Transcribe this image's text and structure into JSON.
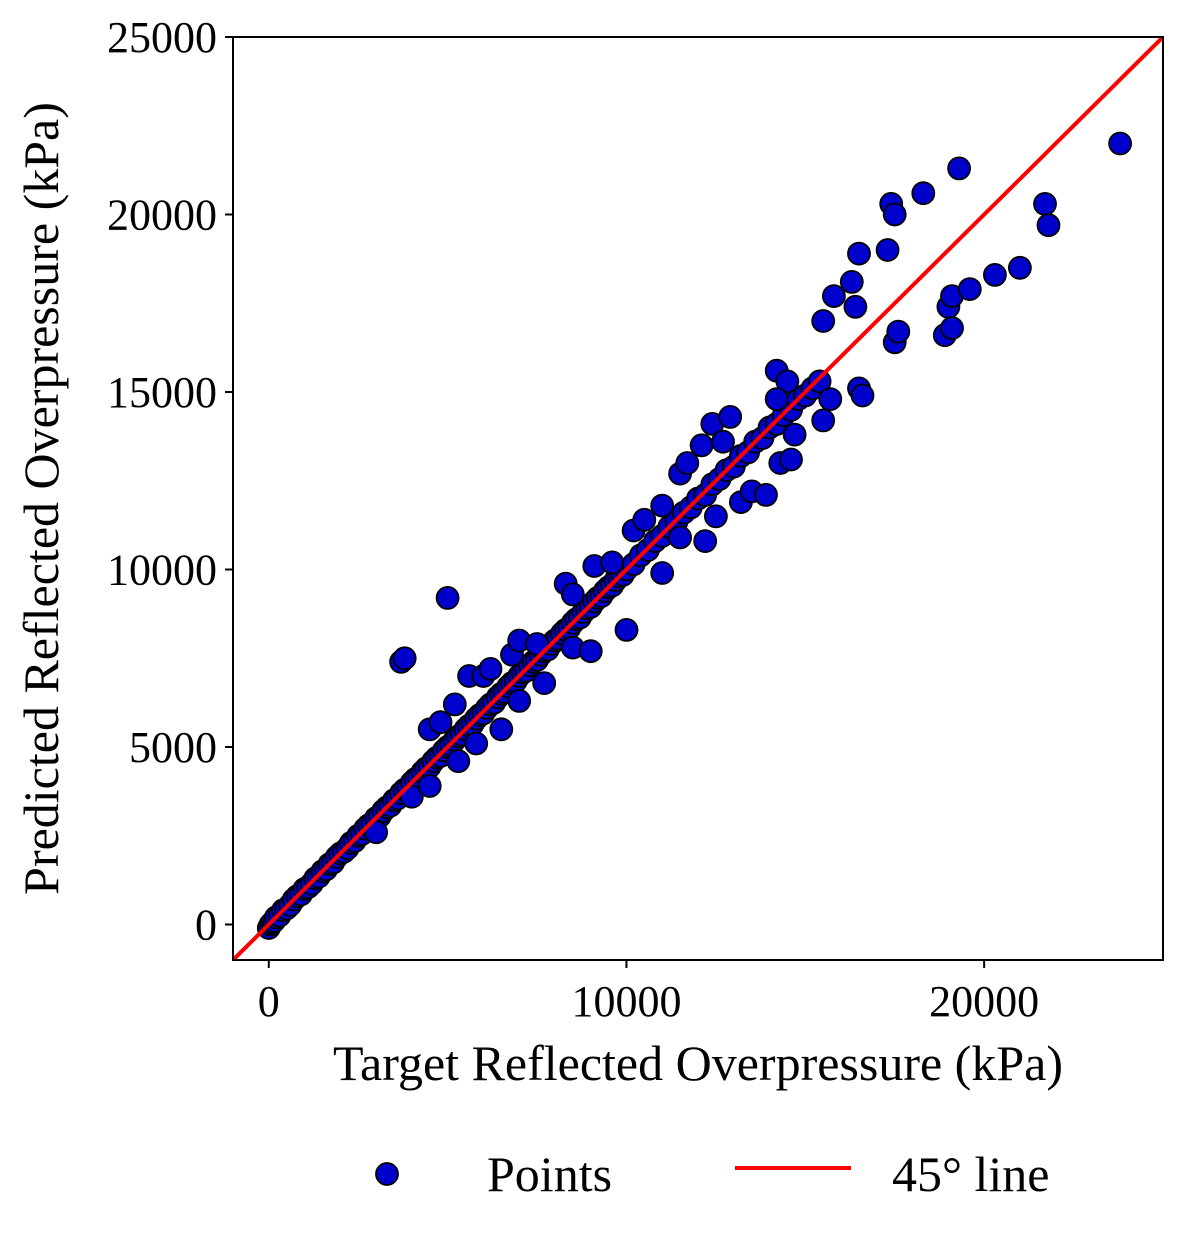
{
  "chart_data": {
    "type": "scatter",
    "xlabel": "Target Reflected Overpressure (kPa)",
    "ylabel": "Predicted Reflected Overpressure (kPa)",
    "xlim": [
      -1000,
      25000
    ],
    "ylim": [
      -1000,
      25000
    ],
    "xticks": [
      0,
      10000,
      20000
    ],
    "xtick_labels": [
      "0",
      "10000",
      "20000"
    ],
    "yticks": [
      0,
      5000,
      10000,
      15000,
      20000,
      25000
    ],
    "ytick_labels": [
      "0",
      "5000",
      "10000",
      "15000",
      "20000",
      "25000"
    ],
    "grid": false,
    "legend_placement": "bottom, below axes",
    "colors": {
      "points": "#0000cc",
      "point_edge": "#000000",
      "line": "#ff0000"
    },
    "series": [
      {
        "name": "Points",
        "kind": "scatter",
        "points": [
          [
            0,
            -100
          ],
          [
            50,
            0
          ],
          [
            100,
            50
          ],
          [
            150,
            100
          ],
          [
            200,
            200
          ],
          [
            300,
            250
          ],
          [
            400,
            400
          ],
          [
            500,
            450
          ],
          [
            600,
            550
          ],
          [
            700,
            700
          ],
          [
            800,
            800
          ],
          [
            900,
            850
          ],
          [
            1000,
            1000
          ],
          [
            1100,
            1050
          ],
          [
            1200,
            1150
          ],
          [
            1300,
            1300
          ],
          [
            1400,
            1350
          ],
          [
            1500,
            1500
          ],
          [
            1600,
            1550
          ],
          [
            1700,
            1700
          ],
          [
            1800,
            1750
          ],
          [
            1900,
            1900
          ],
          [
            2000,
            2000
          ],
          [
            2100,
            2050
          ],
          [
            2200,
            2150
          ],
          [
            2300,
            2300
          ],
          [
            2400,
            2350
          ],
          [
            2500,
            2500
          ],
          [
            2600,
            2550
          ],
          [
            2700,
            2700
          ],
          [
            2800,
            2800
          ],
          [
            2900,
            2850
          ],
          [
            3000,
            3000
          ],
          [
            3100,
            3050
          ],
          [
            3200,
            3200
          ],
          [
            3300,
            3300
          ],
          [
            3400,
            3350
          ],
          [
            3500,
            3500
          ],
          [
            3600,
            3550
          ],
          [
            3700,
            3700
          ],
          [
            3800,
            3800
          ],
          [
            3900,
            3850
          ],
          [
            4000,
            4000
          ],
          [
            4100,
            4100
          ],
          [
            4200,
            4150
          ],
          [
            4300,
            4300
          ],
          [
            4400,
            4400
          ],
          [
            4500,
            4450
          ],
          [
            4600,
            4600
          ],
          [
            4700,
            4700
          ],
          [
            4800,
            4750
          ],
          [
            4900,
            4900
          ],
          [
            5000,
            5000
          ],
          [
            5100,
            5050
          ],
          [
            5200,
            5200
          ],
          [
            5300,
            5300
          ],
          [
            5400,
            5350
          ],
          [
            5500,
            5500
          ],
          [
            5600,
            5600
          ],
          [
            5700,
            5650
          ],
          [
            5800,
            5800
          ],
          [
            5900,
            5900
          ],
          [
            6000,
            5950
          ],
          [
            6100,
            6100
          ],
          [
            6200,
            6200
          ],
          [
            6300,
            6250
          ],
          [
            6400,
            6400
          ],
          [
            6500,
            6500
          ],
          [
            6600,
            6550
          ],
          [
            6700,
            6700
          ],
          [
            6800,
            6800
          ],
          [
            6900,
            6850
          ],
          [
            7000,
            7000
          ],
          [
            7100,
            7100
          ],
          [
            7200,
            7150
          ],
          [
            7300,
            7300
          ],
          [
            7400,
            7400
          ],
          [
            7500,
            7450
          ],
          [
            7600,
            7600
          ],
          [
            7700,
            7700
          ],
          [
            7800,
            7750
          ],
          [
            7900,
            7900
          ],
          [
            8000,
            8000
          ],
          [
            8100,
            8050
          ],
          [
            8200,
            8200
          ],
          [
            8300,
            8300
          ],
          [
            8400,
            8350
          ],
          [
            8500,
            8500
          ],
          [
            8600,
            8600
          ],
          [
            8700,
            8650
          ],
          [
            8800,
            8800
          ],
          [
            8900,
            8900
          ],
          [
            9000,
            8950
          ],
          [
            9100,
            9100
          ],
          [
            9200,
            9200
          ],
          [
            9300,
            9250
          ],
          [
            9400,
            9400
          ],
          [
            9500,
            9500
          ],
          [
            9600,
            9550
          ],
          [
            9700,
            9700
          ],
          [
            9800,
            9800
          ],
          [
            9900,
            9850
          ],
          [
            10000,
            10000
          ],
          [
            10200,
            10150
          ],
          [
            10400,
            10400
          ],
          [
            10600,
            10550
          ],
          [
            10800,
            10800
          ],
          [
            11000,
            10950
          ],
          [
            11200,
            11200
          ],
          [
            11400,
            11350
          ],
          [
            11600,
            11600
          ],
          [
            11800,
            11750
          ],
          [
            12000,
            12000
          ],
          [
            12200,
            12100
          ],
          [
            12400,
            12400
          ],
          [
            12600,
            12550
          ],
          [
            12800,
            12800
          ],
          [
            13000,
            12900
          ],
          [
            13200,
            13200
          ],
          [
            13400,
            13300
          ],
          [
            13600,
            13600
          ],
          [
            13800,
            13700
          ],
          [
            14000,
            14000
          ],
          [
            14200,
            14100
          ],
          [
            14400,
            14350
          ],
          [
            14600,
            14500
          ],
          [
            14800,
            14800
          ],
          [
            15000,
            14900
          ],
          [
            15200,
            15100
          ],
          [
            15400,
            15300
          ],
          [
            3700,
            7400
          ],
          [
            3800,
            7500
          ],
          [
            5000,
            9200
          ],
          [
            4500,
            5500
          ],
          [
            4800,
            5700
          ],
          [
            5200,
            6200
          ],
          [
            5600,
            7000
          ],
          [
            6000,
            7000
          ],
          [
            6200,
            7200
          ],
          [
            6800,
            7600
          ],
          [
            7000,
            8000
          ],
          [
            7500,
            7900
          ],
          [
            8300,
            9600
          ],
          [
            8500,
            9300
          ],
          [
            9100,
            10100
          ],
          [
            9600,
            10200
          ],
          [
            10200,
            11100
          ],
          [
            10500,
            11400
          ],
          [
            11000,
            11800
          ],
          [
            11500,
            12700
          ],
          [
            11700,
            13000
          ],
          [
            12100,
            13500
          ],
          [
            12400,
            14100
          ],
          [
            12900,
            14300
          ],
          [
            12700,
            13600
          ],
          [
            14200,
            15600
          ],
          [
            14500,
            15300
          ],
          [
            14200,
            14800
          ],
          [
            3000,
            2600
          ],
          [
            4000,
            3600
          ],
          [
            4500,
            3900
          ],
          [
            5300,
            4600
          ],
          [
            5800,
            5100
          ],
          [
            6500,
            5500
          ],
          [
            7000,
            6300
          ],
          [
            7700,
            6800
          ],
          [
            8500,
            7800
          ],
          [
            9000,
            7700
          ],
          [
            10000,
            8300
          ],
          [
            11000,
            9900
          ],
          [
            11500,
            10900
          ],
          [
            12200,
            10800
          ],
          [
            12500,
            11500
          ],
          [
            13200,
            11900
          ],
          [
            13500,
            12200
          ],
          [
            13900,
            12100
          ],
          [
            14300,
            13000
          ],
          [
            14600,
            13100
          ],
          [
            14700,
            13800
          ],
          [
            15500,
            14200
          ],
          [
            15700,
            14800
          ],
          [
            16500,
            15100
          ],
          [
            16600,
            14900
          ],
          [
            15500,
            17000
          ],
          [
            15800,
            17700
          ],
          [
            16300,
            18100
          ],
          [
            16400,
            17400
          ],
          [
            16500,
            18900
          ],
          [
            17300,
            19000
          ],
          [
            17400,
            20300
          ],
          [
            17500,
            20000
          ],
          [
            18300,
            20600
          ],
          [
            17500,
            16400
          ],
          [
            17600,
            16700
          ],
          [
            18900,
            16600
          ],
          [
            19000,
            17400
          ],
          [
            19100,
            16800
          ],
          [
            19100,
            17700
          ],
          [
            19300,
            21300
          ],
          [
            19600,
            17900
          ],
          [
            20300,
            18300
          ],
          [
            21000,
            18500
          ],
          [
            21700,
            20300
          ],
          [
            21800,
            19700
          ],
          [
            23800,
            22000
          ]
        ]
      },
      {
        "name": "45° line",
        "kind": "line",
        "points": [
          [
            -1000,
            -1000
          ],
          [
            25000,
            25000
          ]
        ]
      }
    ]
  }
}
